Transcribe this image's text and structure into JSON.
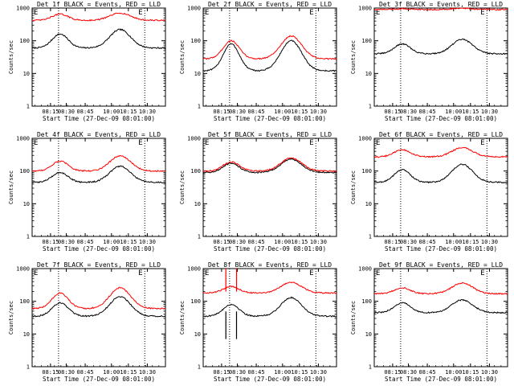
{
  "colors": {
    "events": "#000000",
    "lld": "#ff0000",
    "background": "#ffffff"
  },
  "chart_data": [
    {
      "type": "line",
      "title": "Det 1f BLACK = Events, RED = LLD",
      "xlabel": "Start Time (27-Dec-09 08:01:00)",
      "ylabel": "Counts/sec",
      "x_ticks": [
        "08:15",
        "08:30",
        "08:45",
        "10:00",
        "10:15",
        "10:30"
      ],
      "y_ticks": [
        "1",
        "10",
        "100",
        "1000"
      ],
      "ylim": [
        1,
        1000
      ],
      "marker_label": "E",
      "series": [
        {
          "name": "Events",
          "color": "#000000",
          "base": 60,
          "peak1": 160,
          "peak2": 220,
          "spike": false
        },
        {
          "name": "LLD",
          "color": "#ff0000",
          "base": 420,
          "peak1": 650,
          "peak2": 700,
          "spike": false
        }
      ]
    },
    {
      "type": "line",
      "title": "Det 2f BLACK = Events, RED = LLD",
      "xlabel": "Start Time (27-Dec-09 08:01:00)",
      "ylabel": "Counts/sec",
      "x_ticks": [
        "08:15",
        "08:30",
        "08:45",
        "10:00",
        "10:15",
        "10:30"
      ],
      "y_ticks": [
        "1",
        "10",
        "100",
        "1000"
      ],
      "ylim": [
        1,
        1000
      ],
      "marker_label": "E",
      "series": [
        {
          "name": "Events",
          "color": "#000000",
          "base": 12,
          "peak1": 80,
          "peak2": 100,
          "spike": false
        },
        {
          "name": "LLD",
          "color": "#ff0000",
          "base": 28,
          "peak1": 100,
          "peak2": 140,
          "spike": false
        }
      ]
    },
    {
      "type": "line",
      "title": "Det 3f BLACK = Events, RED = LLD",
      "xlabel": "Start Time (27-Dec-09 08:01:00)",
      "ylabel": "Counts/sec",
      "x_ticks": [
        "08:15",
        "08:30",
        "08:45",
        "10:00",
        "10:15",
        "10:30"
      ],
      "y_ticks": [
        "1",
        "10",
        "100",
        "1000"
      ],
      "ylim": [
        1,
        1000
      ],
      "marker_label": "E",
      "series": [
        {
          "name": "Events",
          "color": "#000000",
          "base": 40,
          "peak1": 80,
          "peak2": 110,
          "spike": false
        },
        {
          "name": "LLD",
          "color": "#ff0000",
          "base": 900,
          "peak1": 950,
          "peak2": 980,
          "spike": false
        }
      ]
    },
    {
      "type": "line",
      "title": "Det 4f BLACK = Events, RED = LLD",
      "xlabel": "Start Time (27-Dec-09 08:01:00)",
      "ylabel": "Counts/sec",
      "x_ticks": [
        "08:15",
        "08:30",
        "08:45",
        "10:00",
        "10:15",
        "10:30"
      ],
      "y_ticks": [
        "1",
        "10",
        "100",
        "1000"
      ],
      "ylim": [
        1,
        1000
      ],
      "marker_label": "E",
      "series": [
        {
          "name": "Events",
          "color": "#000000",
          "base": 45,
          "peak1": 90,
          "peak2": 140,
          "spike": false
        },
        {
          "name": "LLD",
          "color": "#ff0000",
          "base": 100,
          "peak1": 200,
          "peak2": 290,
          "spike": false
        }
      ]
    },
    {
      "type": "line",
      "title": "Det 5f BLACK = Events, RED = LLD",
      "xlabel": "Start Time (27-Dec-09 08:01:00)",
      "ylabel": "Counts/sec",
      "x_ticks": [
        "08:15",
        "08:30",
        "08:45",
        "10:00",
        "10:15",
        "10:30"
      ],
      "y_ticks": [
        "1",
        "10",
        "100",
        "1000"
      ],
      "ylim": [
        1,
        1000
      ],
      "marker_label": "E",
      "series": [
        {
          "name": "Events",
          "color": "#000000",
          "base": 90,
          "peak1": 170,
          "peak2": 230,
          "spike": false
        },
        {
          "name": "LLD",
          "color": "#ff0000",
          "base": 100,
          "peak1": 190,
          "peak2": 250,
          "spike": false
        }
      ]
    },
    {
      "type": "line",
      "title": "Det 6f BLACK = Events, RED = LLD",
      "xlabel": "Start Time (27-Dec-09 08:01:00)",
      "ylabel": "Counts/sec",
      "x_ticks": [
        "08:15",
        "08:30",
        "08:45",
        "10:00",
        "10:15",
        "10:30"
      ],
      "y_ticks": [
        "1",
        "10",
        "100",
        "1000"
      ],
      "ylim": [
        1,
        1000
      ],
      "marker_label": "E",
      "series": [
        {
          "name": "Events",
          "color": "#000000",
          "base": 45,
          "peak1": 110,
          "peak2": 160,
          "spike": false
        },
        {
          "name": "LLD",
          "color": "#ff0000",
          "base": 270,
          "peak1": 450,
          "peak2": 520,
          "spike": false
        }
      ]
    },
    {
      "type": "line",
      "title": "Det 7f BLACK = Events, RED = LLD",
      "xlabel": "Start Time (27-Dec-09 08:01:00)",
      "ylabel": "Counts/sec",
      "x_ticks": [
        "08:15",
        "08:30",
        "08:45",
        "10:00",
        "10:15",
        "10:30"
      ],
      "y_ticks": [
        "1",
        "10",
        "100",
        "1000"
      ],
      "ylim": [
        1,
        1000
      ],
      "marker_label": "E",
      "series": [
        {
          "name": "Events",
          "color": "#000000",
          "base": 35,
          "peak1": 90,
          "peak2": 140,
          "spike": false
        },
        {
          "name": "LLD",
          "color": "#ff0000",
          "base": 60,
          "peak1": 180,
          "peak2": 260,
          "spike": false
        }
      ]
    },
    {
      "type": "line",
      "title": "Det 8f BLACK = Events, RED = LLD",
      "xlabel": "Start Time (27-Dec-09 08:01:00)",
      "ylabel": "Counts/sec",
      "x_ticks": [
        "08:15",
        "08:30",
        "08:45",
        "10:00",
        "10:15",
        "10:30"
      ],
      "y_ticks": [
        "1",
        "10",
        "100",
        "1000"
      ],
      "ylim": [
        1,
        1000
      ],
      "marker_label": "E",
      "series": [
        {
          "name": "Events",
          "color": "#000000",
          "base": 35,
          "peak1": 80,
          "peak2": 130,
          "spike": true
        },
        {
          "name": "LLD",
          "color": "#ff0000",
          "base": 180,
          "peak1": 280,
          "peak2": 380,
          "spike": true
        }
      ]
    },
    {
      "type": "line",
      "title": "Det 9f BLACK = Events, RED = LLD",
      "xlabel": "Start Time (27-Dec-09 08:01:00)",
      "ylabel": "Counts/sec",
      "x_ticks": [
        "08:15",
        "08:30",
        "08:45",
        "10:00",
        "10:15",
        "10:30"
      ],
      "y_ticks": [
        "1",
        "10",
        "100",
        "1000"
      ],
      "ylim": [
        1,
        1000
      ],
      "marker_label": "E",
      "series": [
        {
          "name": "Events",
          "color": "#000000",
          "base": 45,
          "peak1": 90,
          "peak2": 110,
          "spike": false
        },
        {
          "name": "LLD",
          "color": "#ff0000",
          "base": 170,
          "peak1": 260,
          "peak2": 360,
          "spike": false
        }
      ]
    }
  ]
}
